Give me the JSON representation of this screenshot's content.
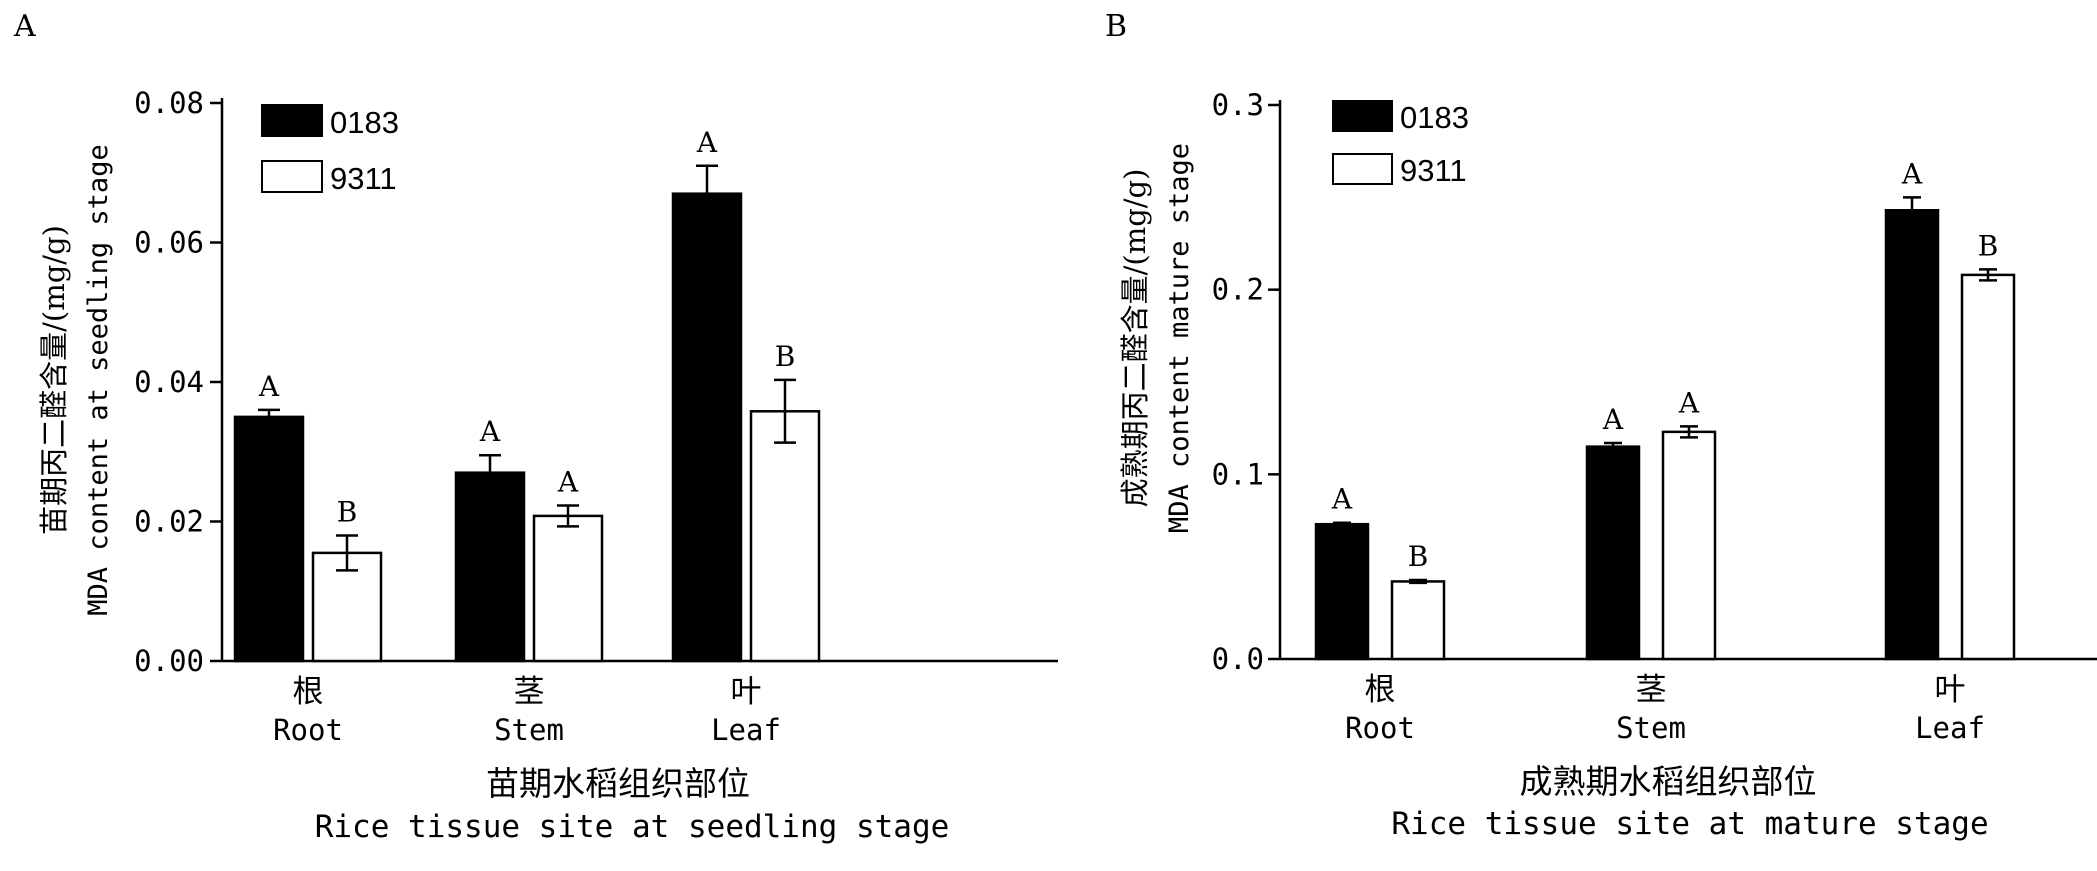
{
  "chart_data": [
    {
      "type": "bar",
      "panel_label": "A",
      "categories_zh": [
        "根",
        "茎",
        "叶"
      ],
      "categories": [
        "Root",
        "Stem",
        "Leaf"
      ],
      "series": [
        {
          "name": "0183",
          "color": "#000000",
          "values": [
            0.035,
            0.027,
            0.067
          ],
          "errors": [
            0.001,
            0.0025,
            0.004
          ],
          "significance": [
            "A",
            "A",
            "A"
          ]
        },
        {
          "name": "9311",
          "color": "#ffffff",
          "values": [
            0.0155,
            0.0208,
            0.0358
          ],
          "errors": [
            0.0025,
            0.0015,
            0.0045
          ],
          "significance": [
            "B",
            "A",
            "B"
          ]
        }
      ],
      "ylim": [
        0,
        0.08
      ],
      "yticks": [
        0,
        0.02,
        0.04,
        0.06,
        0.08
      ],
      "ytick_labels": [
        "0.00",
        "0.02",
        "0.04",
        "0.06",
        "0.08"
      ],
      "ylabel_zh": "苗期丙二醛含量/(mg/g)",
      "ylabel": "MDA content at seedling stage",
      "xlabel_zh": "苗期水稻组织部位",
      "xlabel": "Rice tissue site at seedling stage",
      "legend_position": "top-left",
      "grid": false
    },
    {
      "type": "bar",
      "panel_label": "B",
      "categories_zh": [
        "根",
        "茎",
        "叶"
      ],
      "categories": [
        "Root",
        "Stem",
        "Leaf"
      ],
      "series": [
        {
          "name": "0183",
          "color": "#000000",
          "values": [
            0.073,
            0.115,
            0.243
          ],
          "errors": [
            0.0008,
            0.002,
            0.007
          ],
          "significance": [
            "A",
            "A",
            "A"
          ]
        },
        {
          "name": "9311",
          "color": "#ffffff",
          "values": [
            0.042,
            0.123,
            0.208
          ],
          "errors": [
            0.0008,
            0.003,
            0.003
          ],
          "significance": [
            "B",
            "A",
            "B"
          ]
        }
      ],
      "ylim": [
        0,
        0.3
      ],
      "yticks": [
        0,
        0.1,
        0.2,
        0.3
      ],
      "ytick_labels": [
        "0.0",
        "0.1",
        "0.2",
        "0.3"
      ],
      "ylabel_zh": "成熟期丙二醛含量/(mg/g)",
      "ylabel": "MDA content mature stage",
      "xlabel_zh": "成熟期水稻组织部位",
      "xlabel": "Rice tissue site at mature stage",
      "legend_position": "top-left",
      "grid": false
    }
  ]
}
